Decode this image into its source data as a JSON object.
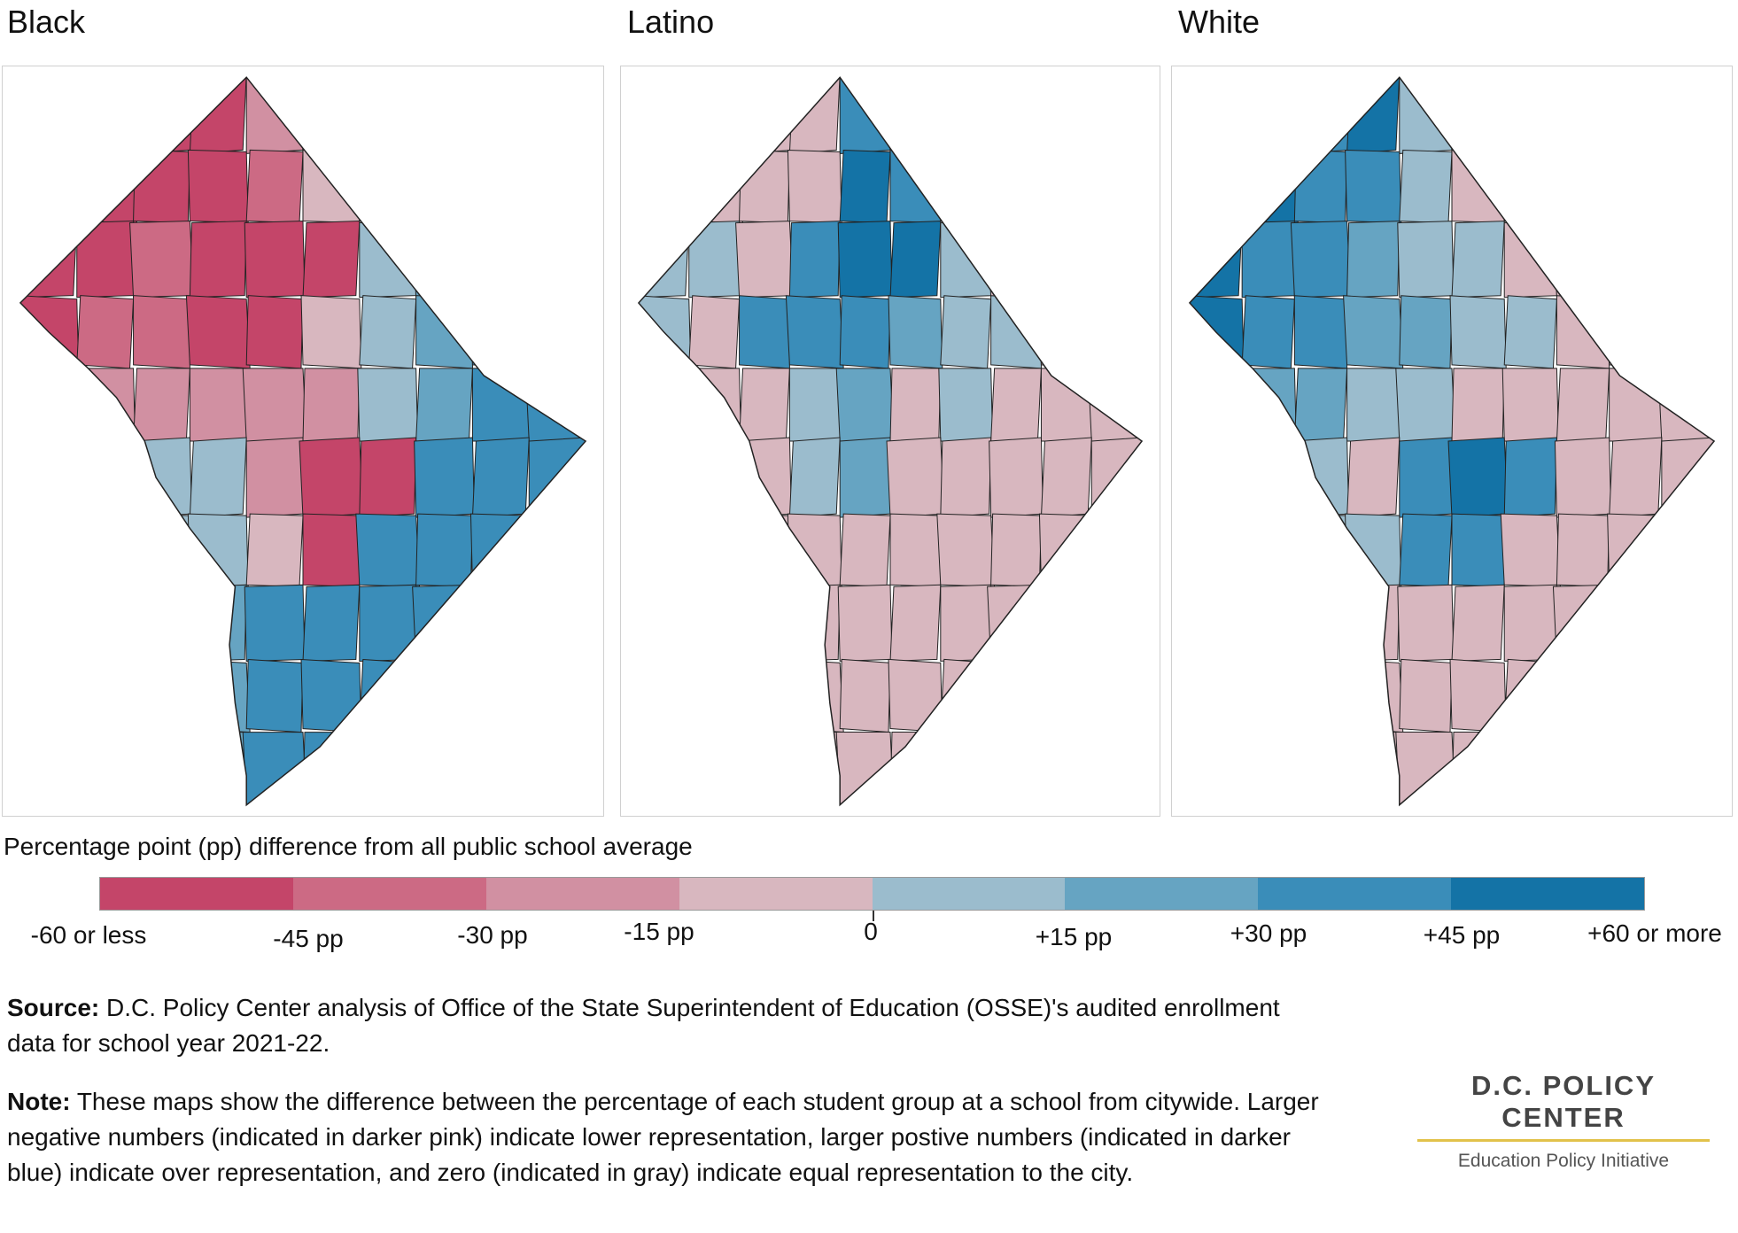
{
  "maps": [
    {
      "title": "Black",
      "left": 2,
      "width": 680
    },
    {
      "title": "Latino",
      "left": 700,
      "width": 610
    },
    {
      "title": "White",
      "left": 1322,
      "width": 634
    }
  ],
  "legend": {
    "title": "Percentage point (pp) difference from all public school average",
    "colors": [
      "#c44569",
      "#cc6a84",
      "#d190a2",
      "#d8b7bf",
      "#9bbccd",
      "#66a4c2",
      "#3a8db9",
      "#1473a6"
    ],
    "labels": [
      "-60 or less",
      "-45 pp",
      "-30 pp",
      "-15 pp",
      "0",
      "+15 pp",
      "+30 pp",
      "+45 pp",
      "+60 or more"
    ]
  },
  "source": {
    "label": "Source:",
    "text": " D.C. Policy Center analysis of Office of the State Superintendent of Education (OSSE)'s audited enrollment data for school year 2021-22."
  },
  "note": {
    "label": "Note:",
    "text": " These maps show the difference between the percentage of each student group at a school from citywide. Larger negative numbers (indicated in darker pink) indicate lower representation, larger postive numbers (indicated in darker blue) indicate over representation, and zero (indicated in gray) indicate equal representation to the city."
  },
  "logo": {
    "name": "D.C. POLICY CENTER",
    "subtitle": "Education Policy Initiative"
  }
}
